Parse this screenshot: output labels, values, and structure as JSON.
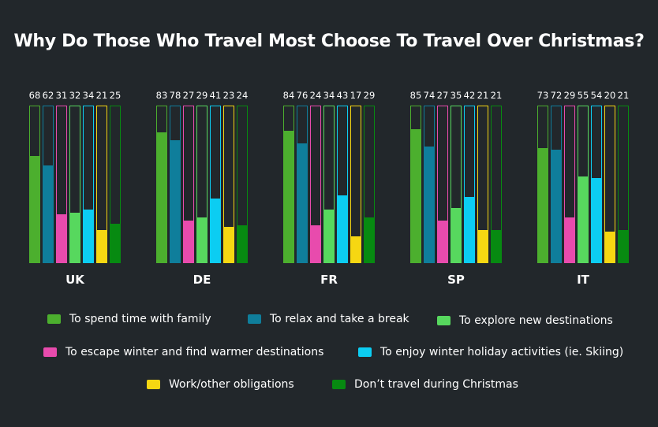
{
  "title": "Why Do Those Who Travel Most Choose To Travel Over Christmas?",
  "chart_data": {
    "type": "bar",
    "title": "Why Do Those Who Travel Most Choose To Travel Over Christmas?",
    "ylim": [
      0,
      100
    ],
    "categories": [
      "UK",
      "DE",
      "FR",
      "SP",
      "IT"
    ],
    "series": [
      {
        "name": "To spend time with family",
        "color": "#4caf2e",
        "values": [
          68,
          83,
          84,
          85,
          73
        ]
      },
      {
        "name": "To relax and take a break",
        "color": "#0f7e9b",
        "values": [
          62,
          78,
          76,
          74,
          72
        ]
      },
      {
        "name": "To escape winter and find warmer destinations",
        "color": "#e84bad",
        "values": [
          31,
          27,
          24,
          27,
          29
        ]
      },
      {
        "name": "To explore new destinations",
        "color": "#57d85e",
        "values": [
          32,
          29,
          34,
          35,
          55
        ]
      },
      {
        "name": "To enjoy winter holiday activities (ie. Skiing)",
        "color": "#0ccdf2",
        "values": [
          34,
          41,
          43,
          42,
          54
        ]
      },
      {
        "name": "Work/other obligations",
        "color": "#f6d712",
        "values": [
          21,
          23,
          17,
          21,
          20
        ]
      },
      {
        "name": "Don’t travel during Christmas",
        "color": "#078a11",
        "values": [
          25,
          24,
          29,
          21,
          21
        ]
      }
    ]
  },
  "legend": [
    {
      "label": "To spend time with family",
      "color": "#4caf2e"
    },
    {
      "label": "To relax and take a break",
      "color": "#0f7e9b"
    },
    {
      "label": "To explore new destinations",
      "color": "#57d85e"
    },
    {
      "label": "To escape winter and find warmer destinations",
      "color": "#e84bad"
    },
    {
      "label": "To enjoy winter holiday activities (ie. Skiing)",
      "color": "#0ccdf2"
    },
    {
      "label": "Work/other obligations",
      "color": "#f6d712"
    },
    {
      "label": "Don’t travel during Christmas",
      "color": "#078a11"
    }
  ]
}
